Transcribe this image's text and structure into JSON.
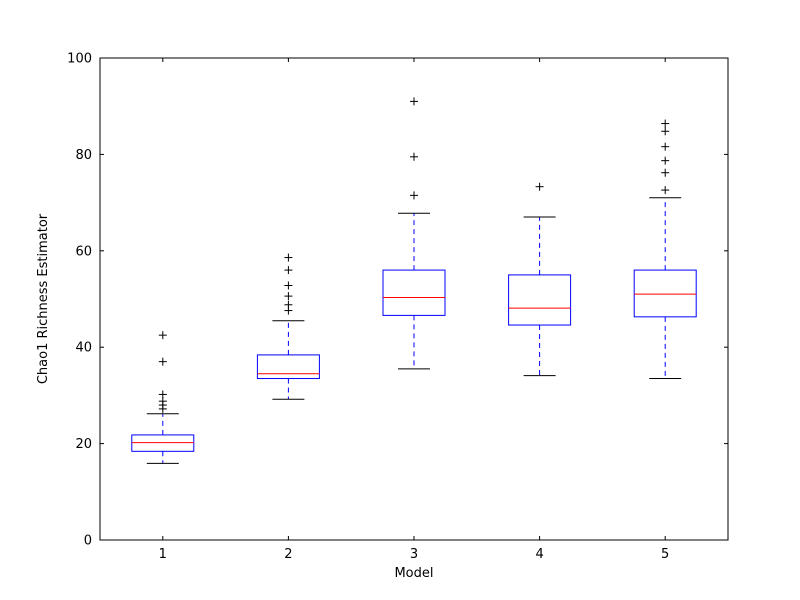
{
  "chart_data": {
    "type": "boxplot",
    "title": "",
    "xlabel": "Model",
    "ylabel": "Chao1 Richness Estimator",
    "categories": [
      "1",
      "2",
      "3",
      "4",
      "5"
    ],
    "ylim": [
      0,
      100
    ],
    "yticks": [
      0,
      20,
      40,
      60,
      80,
      100
    ],
    "grid": false,
    "legend": false,
    "colors": {
      "box": "#0000ff",
      "median": "#ff0000",
      "whisker": "#0000ff",
      "cap": "#000000",
      "flier": "#000000",
      "axis": "#000000",
      "background": "#ffffff"
    },
    "series": [
      {
        "category": "1",
        "whisker_low": 15.9,
        "q1": 18.4,
        "median": 20.2,
        "q3": 21.8,
        "whisker_high": 26.2,
        "fliers": [
          27.2,
          28.0,
          28.8,
          30.2,
          37.0,
          42.5
        ]
      },
      {
        "category": "2",
        "whisker_low": 29.2,
        "q1": 33.5,
        "median": 34.5,
        "q3": 38.4,
        "whisker_high": 45.5,
        "fliers": [
          47.6,
          48.8,
          50.6,
          52.8,
          56.0,
          58.6
        ]
      },
      {
        "category": "3",
        "whisker_low": 35.5,
        "q1": 46.6,
        "median": 50.3,
        "q3": 56.0,
        "whisker_high": 67.8,
        "fliers": [
          71.5,
          79.5,
          91.0
        ]
      },
      {
        "category": "4",
        "whisker_low": 34.1,
        "q1": 44.6,
        "median": 48.1,
        "q3": 55.0,
        "whisker_high": 67.0,
        "fliers": [
          73.3
        ]
      },
      {
        "category": "5",
        "whisker_low": 33.5,
        "q1": 46.3,
        "median": 51.0,
        "q3": 56.0,
        "whisker_high": 71.0,
        "fliers": [
          72.6,
          76.2,
          78.7,
          81.6,
          84.8,
          86.4
        ]
      }
    ]
  }
}
